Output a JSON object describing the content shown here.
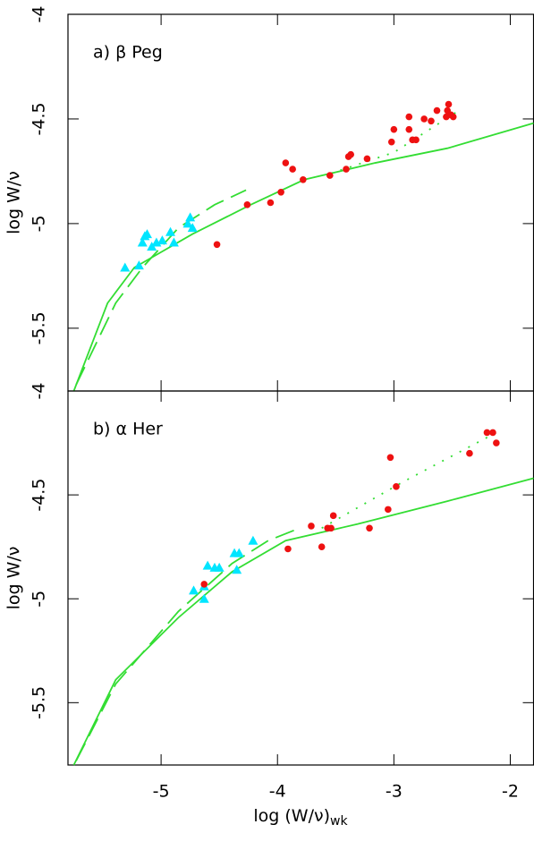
{
  "chart_data": [
    {
      "type": "scatter",
      "annotation": "a) β Peg",
      "ylabel": "log W/ν",
      "xlim": [
        -5.8,
        -1.8
      ],
      "ylim": [
        -5.8,
        -4
      ],
      "xticks": [
        -5,
        -4,
        -3,
        -2
      ],
      "yticks": [
        -4,
        -4.5,
        -5,
        -5.5
      ],
      "series": [
        {
          "style": "solid",
          "color": "#33dd33",
          "x": [
            -5.75,
            -5.46,
            -5.23,
            -4.73,
            -4.23,
            -3.77,
            -3.16,
            -2.54,
            -1.8
          ],
          "values": [
            -5.8,
            -5.38,
            -5.21,
            -5.05,
            -4.91,
            -4.79,
            -4.71,
            -4.64,
            -4.52
          ]
        },
        {
          "style": "dashed",
          "color": "#33dd33",
          "x": [
            -5.73,
            -5.39,
            -5.16,
            -4.85,
            -4.54,
            -4.27
          ],
          "values": [
            -5.77,
            -5.38,
            -5.21,
            -5.02,
            -4.91,
            -4.84
          ]
        },
        {
          "style": "dotted",
          "color": "#33dd33",
          "x": [
            -3.54,
            -3.0,
            -2.47
          ],
          "values": [
            -4.76,
            -4.66,
            -4.47
          ]
        },
        {
          "style": "triangle",
          "color": "#00e5ff",
          "x": [
            -5.31,
            -5.19,
            -5.16,
            -5.14,
            -5.12,
            -5.08,
            -5.04,
            -4.99,
            -4.92,
            -4.89,
            -4.77,
            -4.75,
            -4.73
          ],
          "values": [
            -5.21,
            -5.2,
            -5.09,
            -5.06,
            -5.05,
            -5.11,
            -5.09,
            -5.08,
            -5.04,
            -5.09,
            -5.0,
            -4.97,
            -5.02
          ]
        },
        {
          "style": "circle",
          "color": "#ee1111",
          "x": [
            -4.52,
            -4.26,
            -4.06,
            -3.97,
            -3.93,
            -3.87,
            -3.78,
            -3.55,
            -3.41,
            -3.39,
            -3.37,
            -3.23,
            -3.02,
            -3.0,
            -2.87,
            -2.87,
            -2.84,
            -2.81,
            -2.74,
            -2.68,
            -2.63,
            -2.55,
            -2.54,
            -2.53,
            -2.51,
            -2.49
          ],
          "values": [
            -5.1,
            -4.91,
            -4.9,
            -4.85,
            -4.71,
            -4.74,
            -4.79,
            -4.77,
            -4.74,
            -4.68,
            -4.67,
            -4.69,
            -4.61,
            -4.55,
            -4.55,
            -4.49,
            -4.6,
            -4.6,
            -4.5,
            -4.51,
            -4.46,
            -4.49,
            -4.46,
            -4.43,
            -4.48,
            -4.49
          ]
        }
      ]
    },
    {
      "type": "scatter",
      "annotation": "b) α Her",
      "ylabel": "log W/ν",
      "xlabel": "log (W/ν)",
      "xlabel_sub": "wk",
      "xlim": [
        -5.8,
        -1.8
      ],
      "ylim": [
        -5.8,
        -4
      ],
      "xticks": [
        -5,
        -4,
        -3,
        -2
      ],
      "yticks": [
        -4,
        -4.5,
        -5,
        -5.5
      ],
      "series": [
        {
          "style": "solid",
          "color": "#33dd33",
          "x": [
            -5.75,
            -5.39,
            -4.85,
            -4.39,
            -3.93,
            -3.31,
            -2.54,
            -1.8
          ],
          "values": [
            -5.8,
            -5.39,
            -5.09,
            -4.87,
            -4.72,
            -4.64,
            -4.53,
            -4.42
          ]
        },
        {
          "style": "dashed",
          "color": "#33dd33",
          "x": [
            -5.73,
            -5.39,
            -4.85,
            -4.39,
            -4.08,
            -3.81
          ],
          "values": [
            -5.78,
            -5.41,
            -5.06,
            -4.83,
            -4.72,
            -4.66
          ]
        },
        {
          "style": "dotted",
          "color": "#33dd33",
          "x": [
            -3.62,
            -2.93,
            -2.12
          ],
          "values": [
            -4.66,
            -4.44,
            -4.2
          ]
        },
        {
          "style": "triangle",
          "color": "#00e5ff",
          "x": [
            -4.72,
            -4.63,
            -4.63,
            -4.6,
            -4.54,
            -4.5,
            -4.37,
            -4.35,
            -4.33,
            -4.21
          ],
          "values": [
            -4.96,
            -4.94,
            -5.0,
            -4.84,
            -4.85,
            -4.85,
            -4.78,
            -4.86,
            -4.78,
            -4.72
          ]
        },
        {
          "style": "circle",
          "color": "#ee1111",
          "x": [
            -4.63,
            -3.91,
            -3.71,
            -3.62,
            -3.57,
            -3.54,
            -3.52,
            -3.21,
            -3.05,
            -3.03,
            -2.98,
            -2.35,
            -2.2,
            -2.15,
            -2.12
          ],
          "values": [
            -4.93,
            -4.76,
            -4.65,
            -4.75,
            -4.66,
            -4.66,
            -4.6,
            -4.66,
            -4.57,
            -4.32,
            -4.46,
            -4.3,
            -4.2,
            -4.2,
            -4.25
          ]
        }
      ]
    }
  ]
}
